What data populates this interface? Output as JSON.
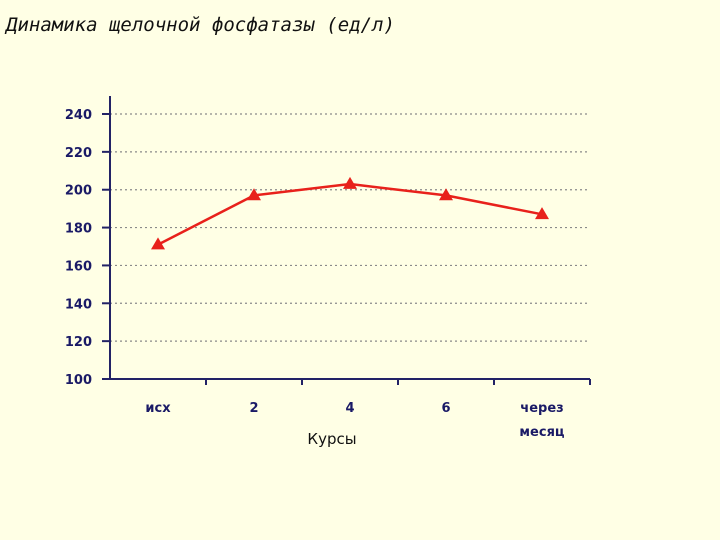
{
  "title": "Динамика щелочной фосфатазы (ед/л)",
  "chart_data": {
    "type": "line",
    "title": "Динамика щелочной фосфатазы (ед/л)",
    "xlabel": "Курсы",
    "ylabel": "",
    "categories": [
      [
        "исх"
      ],
      [
        "2"
      ],
      [
        "4"
      ],
      [
        "6"
      ],
      [
        "через",
        "месяц"
      ]
    ],
    "series": [
      {
        "values": [
          171,
          197,
          203,
          197,
          187
        ],
        "color": "#e8211b"
      }
    ],
    "ylim": [
      100,
      240
    ],
    "yticks": [
      100,
      120,
      140,
      160,
      180,
      200,
      220,
      240
    ],
    "grid": true,
    "legend": "none"
  }
}
